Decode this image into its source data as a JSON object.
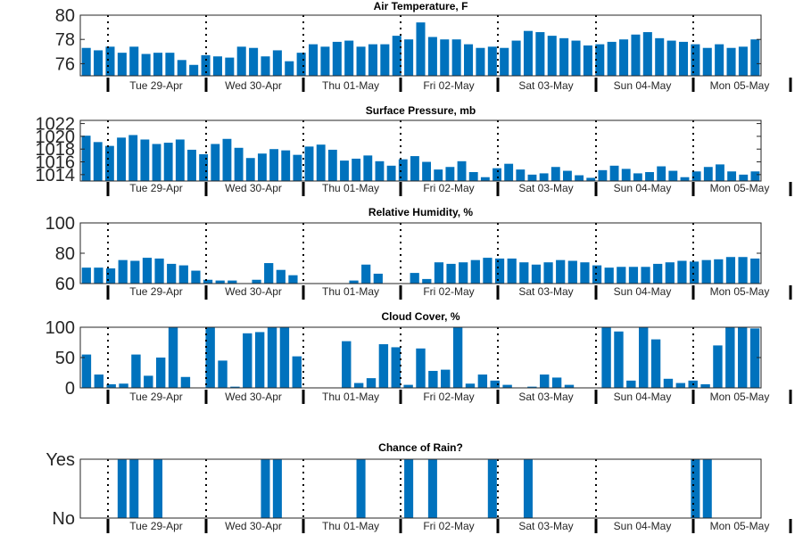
{
  "style": {
    "bar_color": "#0072BD",
    "text_color": "#262626",
    "separator_color": "#000000"
  },
  "day_labels": [
    "Tue 29-Apr",
    "Wed 30-Apr",
    "Thu 01-May",
    "Fri 02-May",
    "Sat 03-May",
    "Sun 04-May",
    "Mon 05-May"
  ],
  "chart_data": [
    {
      "type": "bar",
      "title": "Air Temperature, F",
      "ylim": [
        75,
        80
      ],
      "yticks": [
        76,
        78,
        80
      ],
      "ytick_labels": [
        "76",
        "78",
        "80"
      ],
      "values": [
        77.3,
        77.1,
        77.4,
        76.9,
        77.4,
        76.8,
        76.9,
        76.9,
        76.3,
        75.9,
        76.7,
        76.6,
        76.5,
        77.4,
        77.3,
        76.6,
        77.1,
        76.2,
        76.9,
        77.6,
        77.4,
        77.8,
        77.9,
        77.4,
        77.6,
        77.6,
        78.3,
        78.0,
        79.4,
        78.2,
        78.0,
        78.0,
        77.6,
        77.3,
        77.4,
        77.3,
        77.9,
        78.7,
        78.6,
        78.3,
        78.1,
        77.9,
        77.5,
        77.6,
        77.8,
        78.0,
        78.4,
        78.6,
        78.1,
        77.9,
        77.8,
        77.6,
        77.3,
        77.6,
        77.3,
        77.4,
        78.0
      ]
    },
    {
      "type": "bar",
      "title": "Surface Pressure, mb",
      "ylim": [
        1013,
        1022.5
      ],
      "yticks": [
        1014,
        1016,
        1018,
        1020,
        1022
      ],
      "ytick_labels": [
        "1014",
        "1016",
        "1018",
        "1020",
        "1022"
      ],
      "values": [
        1020.1,
        1019.1,
        1018.5,
        1019.8,
        1020.2,
        1019.5,
        1018.8,
        1019.0,
        1019.5,
        1017.9,
        1017.2,
        1018.8,
        1019.6,
        1018.2,
        1016.6,
        1017.3,
        1018.0,
        1017.8,
        1017.1,
        1018.4,
        1018.7,
        1017.9,
        1016.2,
        1016.5,
        1017.0,
        1016.1,
        1015.4,
        1016.4,
        1016.9,
        1016.0,
        1014.8,
        1015.2,
        1016.1,
        1014.4,
        1013.6,
        1015.0,
        1015.7,
        1014.8,
        1014.0,
        1014.2,
        1015.2,
        1014.6,
        1013.9,
        1013.5,
        1014.7,
        1015.4,
        1014.9,
        1014.2,
        1014.4,
        1015.3,
        1014.6,
        1013.6,
        1014.5,
        1015.2,
        1015.6,
        1014.5,
        1014.0,
        1014.5
      ]
    },
    {
      "type": "bar",
      "title": "Relative Humidity, %",
      "ylim": [
        60,
        100
      ],
      "yticks": [
        60,
        80,
        100
      ],
      "ytick_labels": [
        "60",
        "80",
        "100"
      ],
      "values": [
        70.5,
        70.5,
        70.0,
        75.5,
        75.0,
        77.0,
        76.5,
        73.0,
        72.0,
        68.5,
        62.5,
        62.0,
        62.0,
        60.0,
        62.5,
        73.5,
        69.0,
        65.5,
        60.0,
        60.0,
        60.0,
        60.0,
        62.0,
        72.5,
        66.5,
        60.0,
        60.0,
        67.0,
        63.0,
        74.0,
        73.0,
        74.0,
        75.5,
        77.0,
        76.5,
        76.5,
        74.0,
        72.5,
        74.0,
        75.5,
        75.0,
        74.0,
        72.0,
        70.5,
        71.0,
        71.0,
        71.0,
        73.0,
        74.0,
        75.0,
        74.5,
        75.5,
        76.0,
        77.5,
        77.5,
        76.5
      ]
    },
    {
      "type": "bar",
      "title": "Cloud Cover, %",
      "ylim": [
        0,
        100
      ],
      "yticks": [
        0,
        50,
        100
      ],
      "ytick_labels": [
        "0",
        "50",
        "100"
      ],
      "values": [
        55,
        22,
        6,
        7,
        55,
        20,
        50,
        100,
        18,
        0,
        100,
        45,
        2,
        90,
        92,
        100,
        100,
        52,
        0,
        0,
        0,
        77,
        8,
        16,
        72,
        67,
        5,
        65,
        28,
        30,
        100,
        7,
        22,
        12,
        5,
        0,
        2,
        22,
        17,
        5,
        0,
        0,
        100,
        93,
        12,
        100,
        80,
        15,
        8,
        12,
        6,
        70,
        100,
        100,
        98
      ]
    },
    {
      "type": "bar",
      "title": "Chance of Rain?",
      "ylim": [
        0,
        1
      ],
      "yticks": [
        0,
        1
      ],
      "ytick_labels": [
        "No",
        "Yes"
      ],
      "values": [
        0,
        0,
        0,
        1,
        1,
        0,
        1,
        0,
        0,
        0,
        0,
        0,
        0,
        0,
        0,
        1,
        1,
        0,
        0,
        0,
        0,
        0,
        0,
        1,
        0,
        0,
        0,
        1,
        0,
        1,
        0,
        0,
        0,
        0,
        1,
        0,
        0,
        1,
        0,
        0,
        0,
        0,
        0,
        0,
        0,
        0,
        0,
        0,
        0,
        0,
        0,
        1,
        1,
        0,
        0,
        0,
        0
      ]
    }
  ]
}
